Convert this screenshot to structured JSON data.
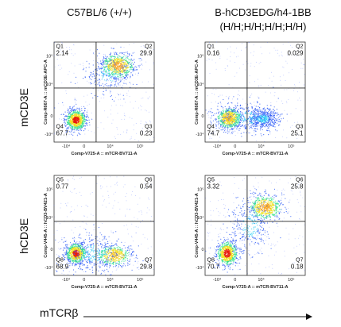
{
  "columns": [
    "C57BL/6 (+/+)",
    "B-hCD3EDG/h4-1BB",
    "(H/H;H/H;H/H;H/H)"
  ],
  "rows": [
    "mCD3E",
    "hCD3E"
  ],
  "x_axis_label": "mTCRβ",
  "chart_data": [
    {
      "type": "scatter",
      "row": "mCD3E",
      "column": "C57BL/6 (+/+)",
      "xlabel": "Comp-V725-A :: mTCR-BV711-A",
      "ylabel": "Comp-R667-A :: mCD3E-APC-A",
      "quadrants": [
        {
          "name": "Q1",
          "value": "2.14"
        },
        {
          "name": "Q2",
          "value": "29.9"
        },
        {
          "name": "Q3",
          "value": "0.23"
        },
        {
          "name": "Q4",
          "value": "67.7"
        }
      ]
    },
    {
      "type": "scatter",
      "row": "mCD3E",
      "column": "B-hCD3EDG/h4-1BB (H/H;H/H;H/H;H/H)",
      "xlabel": "Comp-V725-A :: mTCR-BV711-A",
      "ylabel": "Comp-R667-A :: mCD3E-APC-A",
      "quadrants": [
        {
          "name": "Q1",
          "value": "0.16"
        },
        {
          "name": "Q2",
          "value": "0.029"
        },
        {
          "name": "Q3",
          "value": "25.1"
        },
        {
          "name": "Q4",
          "value": "74.7"
        }
      ]
    },
    {
      "type": "scatter",
      "row": "hCD3E",
      "column": "C57BL/6 (+/+)",
      "xlabel": "Comp-V725-A :: mTCR-BV711-A",
      "ylabel": "Comp-V445-A :: hCD3-BV421-A",
      "quadrants": [
        {
          "name": "Q5",
          "value": "0.77"
        },
        {
          "name": "Q6",
          "value": "0.54"
        },
        {
          "name": "Q7",
          "value": "29.8"
        },
        {
          "name": "Q8",
          "value": "68.9"
        }
      ]
    },
    {
      "type": "scatter",
      "row": "hCD3E",
      "column": "B-hCD3EDG/h4-1BB (H/H;H/H;H/H;H/H)",
      "xlabel": "Comp-V725-A :: mTCR-BV711-A",
      "ylabel": "Comp-V445-A :: hCD3-BV421-A",
      "quadrants": [
        {
          "name": "Q5",
          "value": "3.32"
        },
        {
          "name": "Q6",
          "value": "25.8"
        },
        {
          "name": "Q7",
          "value": "0.18"
        },
        {
          "name": "Q8",
          "value": "70.7"
        }
      ]
    }
  ],
  "ticks": {
    "x": [
      "-10⁴",
      "0",
      "10⁴",
      "10⁵"
    ],
    "y": [
      "10⁵",
      "10⁴",
      "0",
      "-10⁴"
    ]
  }
}
